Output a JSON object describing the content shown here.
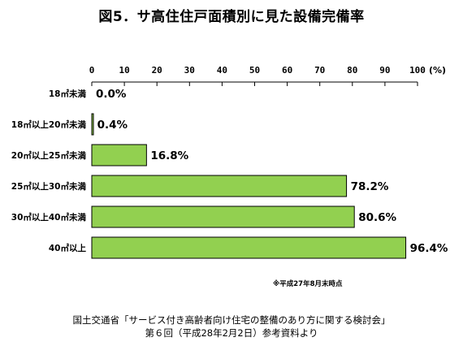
{
  "title": "図5．サ高住住戸面積別に見た設備完備率",
  "chart_data": {
    "type": "bar",
    "orientation": "horizontal",
    "categories": [
      "18㎡未満",
      "18㎡以上20㎡未満",
      "20㎡以上25㎡未満",
      "25㎡以上30㎡未満",
      "30㎡以上40㎡未満",
      "40㎡以上"
    ],
    "values": [
      0.0,
      0.4,
      16.8,
      78.2,
      80.6,
      96.4
    ],
    "value_labels": [
      "0.0%",
      "0.4%",
      "16.8%",
      "78.2%",
      "80.6%",
      "96.4%"
    ],
    "x_ticks": [
      "0",
      "10",
      "20",
      "30",
      "40",
      "50",
      "60",
      "70",
      "80",
      "90",
      "100"
    ],
    "x_unit": "(%)",
    "xlim": [
      0,
      100
    ],
    "axis_position": "top",
    "grid": false,
    "bar_color": "#92d050",
    "bar_edge_color": "#000000"
  },
  "note": "※平成27年8月末時点",
  "source_line1": "国土交通省「サービス付き高齢者向け住宅の整備のあり方に関する検討会」",
  "source_line2": "第６回（平成28年2月2日）参考資料より"
}
